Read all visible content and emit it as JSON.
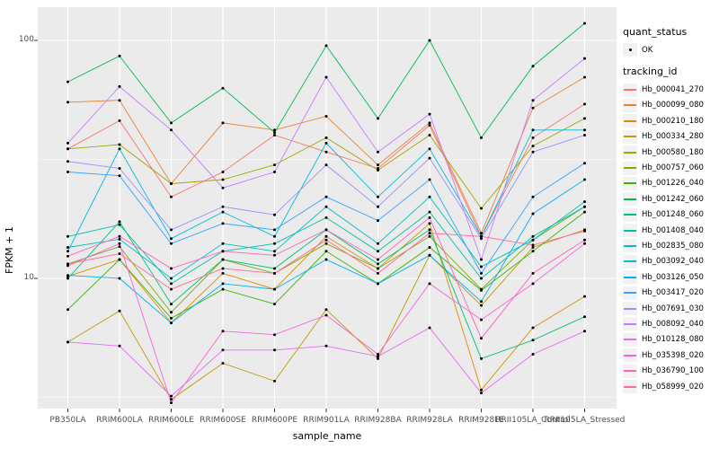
{
  "axes": {
    "y_title": "FPKM + 1",
    "x_title": "sample_name",
    "y_tick_labels": [
      "100",
      "10"
    ]
  },
  "legend": {
    "quant_title": "quant_status",
    "quant_item_label": "OK",
    "tracking_title": "tracking_id"
  },
  "chart_data": {
    "type": "line",
    "title": "",
    "xlabel": "sample_name",
    "ylabel": "FPKM + 1",
    "y_scale": "log10",
    "ylim": [
      2.8,
      140
    ],
    "y_major_ticks": [
      10,
      100
    ],
    "y_minor_gridlines": [
      3.1623,
      31.623
    ],
    "grid": "white-on-gray-panel",
    "legend_position": "right",
    "point_marker": "black-dot",
    "quant_status_levels": [
      "OK"
    ],
    "categories": [
      "PB350LA",
      "RRIM600LA",
      "RRIM600LE",
      "RRIM600SE",
      "RRIM600PE",
      "RRIM901LA",
      "RRIM928BA",
      "RRIM928LA",
      "RRIM928LE",
      "RRII105LA_Control",
      "RRII105LA_Stressed"
    ],
    "series": [
      {
        "name": "Hb_000041_270",
        "color": "#F8766D",
        "values": [
          35,
          46,
          22,
          28,
          40,
          34,
          29,
          44,
          15,
          39,
          54
        ]
      },
      {
        "name": "Hb_000099_080",
        "color": "#EA8331",
        "values": [
          55,
          56,
          25,
          45,
          42,
          48,
          30,
          45,
          15.5,
          52,
          70
        ]
      },
      {
        "name": "Hb_000210_180",
        "color": "#D89000",
        "values": [
          10.2,
          12,
          6.5,
          10.5,
          9,
          15,
          11,
          17,
          3.4,
          6.2,
          8.4
        ]
      },
      {
        "name": "Hb_000334_280",
        "color": "#C09B00",
        "values": [
          5.4,
          7.3,
          3.1,
          4.4,
          3.7,
          7.4,
          4.6,
          12.5,
          7.7,
          13.5,
          16
        ]
      },
      {
        "name": "Hb_000580_180",
        "color": "#A3A500",
        "values": [
          35,
          36.5,
          25,
          26,
          30,
          39,
          28.5,
          40,
          19.7,
          36,
          47
        ]
      },
      {
        "name": "Hb_000757_060",
        "color": "#7CAE00",
        "values": [
          11.5,
          13.6,
          7.2,
          12,
          10.5,
          14,
          11,
          15,
          9,
          14.5,
          20
        ]
      },
      {
        "name": "Hb_001226_040",
        "color": "#39B600",
        "values": [
          7.4,
          12,
          6.8,
          9,
          7.8,
          13,
          9.5,
          13.5,
          8.9,
          13,
          19
        ]
      },
      {
        "name": "Hb_001242_060",
        "color": "#00BB4E",
        "values": [
          67,
          86,
          45,
          63,
          41,
          95,
          47,
          100,
          39,
          78,
          118
        ]
      },
      {
        "name": "Hb_001248_060",
        "color": "#00BF7D",
        "values": [
          10,
          17.3,
          7.8,
          12,
          11,
          16,
          11.5,
          16,
          4.6,
          5.5,
          6.9
        ]
      },
      {
        "name": "Hb_001408_040",
        "color": "#00C1A3",
        "values": [
          15,
          16.8,
          9.5,
          13,
          14,
          18,
          13,
          19,
          10,
          15,
          20
        ]
      },
      {
        "name": "Hb_002835_080",
        "color": "#00BFC4",
        "values": [
          13.5,
          14.6,
          10,
          14,
          13,
          20,
          14,
          22,
          11.2,
          14.5,
          21
        ]
      },
      {
        "name": "Hb_003092_040",
        "color": "#00BAE0",
        "values": [
          13,
          35,
          14.7,
          19,
          15,
          37,
          22,
          35,
          15,
          42,
          42
        ]
      },
      {
        "name": "Hb_003126_050",
        "color": "#00B0F6",
        "values": [
          10.3,
          10,
          6.5,
          9.5,
          9,
          12,
          9.5,
          12.5,
          8,
          18.7,
          26
        ]
      },
      {
        "name": "Hb_003417_020",
        "color": "#35A2FF",
        "values": [
          28,
          27,
          14,
          17,
          16,
          22,
          17.5,
          26,
          10.5,
          22,
          30.5
        ]
      },
      {
        "name": "Hb_007691_030",
        "color": "#9590FF",
        "values": [
          31,
          29,
          16,
          20,
          18.5,
          30,
          20,
          32,
          14.7,
          34,
          40
        ]
      },
      {
        "name": "Hb_008092_040",
        "color": "#C77CFF",
        "values": [
          37,
          64,
          42,
          24,
          28,
          70,
          34,
          49,
          12,
          56,
          84
        ]
      },
      {
        "name": "Hb_010128_080",
        "color": "#E76BF3",
        "values": [
          5.4,
          5.2,
          3.2,
          5.0,
          5.0,
          5.2,
          4.7,
          6.2,
          3.3,
          4.8,
          6.0
        ]
      },
      {
        "name": "Hb_035398_020",
        "color": "#FA62DB",
        "values": [
          11.3,
          14,
          3.0,
          6,
          5.8,
          7,
          4.8,
          9.5,
          6.7,
          9.5,
          14
        ]
      },
      {
        "name": "Hb_036790_100",
        "color": "#FF62BC",
        "values": [
          12.4,
          15,
          11,
          13,
          12.5,
          16,
          12,
          18,
          5.6,
          10.5,
          14.5
        ]
      },
      {
        "name": "Hb_058999_020",
        "color": "#FF6A98",
        "values": [
          11.5,
          12.7,
          9,
          11,
          10.5,
          14.5,
          10.5,
          15.5,
          15,
          13.8,
          15.8
        ]
      }
    ]
  },
  "style": {
    "panel_bg": "#EBEBEB",
    "grid_color": "#FFFFFF",
    "tick_color": "#333333",
    "point_color": "#000000",
    "key_bg": "#F2F2F2"
  }
}
